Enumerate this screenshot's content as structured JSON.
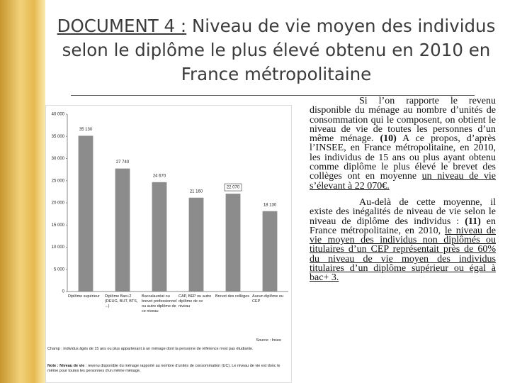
{
  "header": {
    "label": "DOCUMENT 4 :",
    "title": "Niveau de vie moyen des individus selon le diplôme le plus élevé obtenu en 2010 en France métropolitaine"
  },
  "chart_data": {
    "type": "bar",
    "categories": [
      "Diplôme supérieur",
      "Diplôme Bac+2 (DEUG, BUT, BTS, ...)",
      "Baccalauréat ou brevet professionnel ou autre diplôme de ce niveau",
      "CAP, BEP ou autre diplôme de ce niveau",
      "Brevet des collèges",
      "Aucun diplôme ou CEP"
    ],
    "values": [
      35130,
      27740,
      24670,
      21160,
      22070,
      18130
    ],
    "value_labels": [
      "35 130",
      "27 740",
      "24 670",
      "21 160",
      "22 070",
      "18 130"
    ],
    "color": "#8c8c8c",
    "ylim": [
      0,
      40000
    ],
    "yticks": [
      0,
      {
        "value": 5000,
        "label": "5 000"
      },
      {
        "value": 10000,
        "label": "10 000"
      },
      {
        "value": 15000,
        "label": "15 000"
      },
      {
        "value": 20000,
        "label": "20 000"
      },
      {
        "value": 25000,
        "label": "25 000"
      },
      {
        "value": 30000,
        "label": "30 000"
      },
      {
        "value": 35000,
        "label": "35 000"
      },
      {
        "value": 40000,
        "label": "40 000"
      }
    ],
    "source": "Source : Insee",
    "field_note": "Champ : individus âgés de 15 ans ou plus appartenant à un ménage dont la personne de référence n'est pas étudiante.",
    "note_label": "Note : Niveau de vie",
    "note": " : revenu disponible du ménage rapporté au nombre d'unités de consommation (UC). Le niveau de vie est donc le même pour toutes les personnes d'un même ménage."
  },
  "text": {
    "paragraphs": [
      [
        "Si l’on rapporte le revenu disponible du ménage au nombre d’unités de consommation qui le composent, on obtient le niveau de vie de toutes les personnes d’un même ménage. ",
        "(10)",
        " A ce propos, d’après l’INSEE, en France métropolitaine, en 2010, les individus de 15 ans ou plus ayant obtenu comme diplôme le plus élevé le brevet des collèges ont en moyenne ",
        "un niveau de vie s’élevant à 22 070€."
      ],
      [
        "Au-delà de cette moyenne, il existe des inégalités de niveau de vie selon le niveau de diplôme des individus : ",
        "(11)",
        " en France métropolitaine, en 2010, ",
        "le niveau de vie moyen des individus non diplômés ou titulaires d’un CEP représentait près de 60% du niveau de vie moyen des individus titulaires d’un diplôme supérieur ou égal à bac+ 3."
      ]
    ]
  }
}
